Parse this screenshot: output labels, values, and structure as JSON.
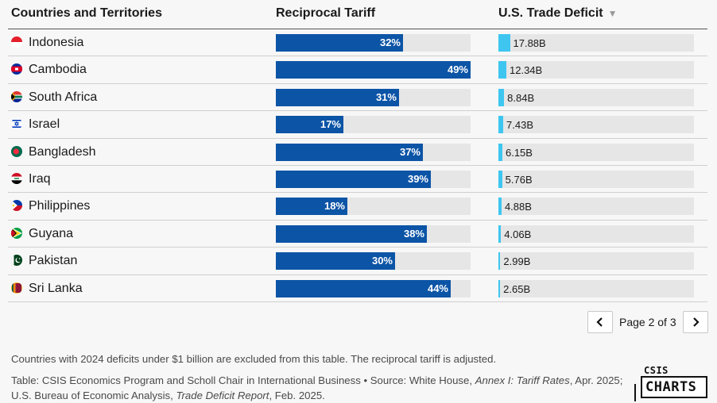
{
  "header": {
    "country_col": "Countries and Territories",
    "tariff_col": "Reciprocal Tariff",
    "deficit_col": "U.S. Trade Deficit"
  },
  "chart_data": {
    "type": "table",
    "columns": [
      "Countries and Territories",
      "Reciprocal Tariff",
      "U.S. Trade Deficit"
    ],
    "tariff_max": 49,
    "deficit_max": 17.88,
    "rows": [
      {
        "country": "Indonesia",
        "tariff": 32,
        "tariff_label": "32%",
        "deficit": 17.88,
        "deficit_label": "17.88B",
        "flag": "indonesia-flag"
      },
      {
        "country": "Cambodia",
        "tariff": 49,
        "tariff_label": "49%",
        "deficit": 12.34,
        "deficit_label": "12.34B",
        "flag": "cambodia-flag"
      },
      {
        "country": "South Africa",
        "tariff": 31,
        "tariff_label": "31%",
        "deficit": 8.84,
        "deficit_label": "8.84B",
        "flag": "south-africa-flag"
      },
      {
        "country": "Israel",
        "tariff": 17,
        "tariff_label": "17%",
        "deficit": 7.43,
        "deficit_label": "7.43B",
        "flag": "israel-flag"
      },
      {
        "country": "Bangladesh",
        "tariff": 37,
        "tariff_label": "37%",
        "deficit": 6.15,
        "deficit_label": "6.15B",
        "flag": "bangladesh-flag"
      },
      {
        "country": "Iraq",
        "tariff": 39,
        "tariff_label": "39%",
        "deficit": 5.76,
        "deficit_label": "5.76B",
        "flag": "iraq-flag"
      },
      {
        "country": "Philippines",
        "tariff": 18,
        "tariff_label": "18%",
        "deficit": 4.88,
        "deficit_label": "4.88B",
        "flag": "philippines-flag"
      },
      {
        "country": "Guyana",
        "tariff": 38,
        "tariff_label": "38%",
        "deficit": 4.06,
        "deficit_label": "4.06B",
        "flag": "guyana-flag"
      },
      {
        "country": "Pakistan",
        "tariff": 30,
        "tariff_label": "30%",
        "deficit": 2.99,
        "deficit_label": "2.99B",
        "flag": "pakistan-flag"
      },
      {
        "country": "Sri Lanka",
        "tariff": 44,
        "tariff_label": "44%",
        "deficit": 2.65,
        "deficit_label": "2.65B",
        "flag": "sri-lanka-flag"
      }
    ]
  },
  "pagination": {
    "label": "Page 2 of 3",
    "current": 2,
    "total": 3
  },
  "footer": {
    "note": "Countries with 2024 deficits under $1 billion are excluded from this table. The reciprocal tariff is adjusted.",
    "source_prefix": "Table: CSIS Economics Program and Scholl Chair in International Business • Source: White House, ",
    "source_doc1": "Annex I: Tariff Rates",
    "source_mid": ", Apr. 2025; U.S. Bureau of Economic Analysis, ",
    "source_doc2": "Trade Deficit Report",
    "source_end": ", Feb. 2025."
  },
  "logo": {
    "top": "CSIS",
    "bottom": "CHARTS"
  },
  "colors": {
    "tariff_bar": "#0c54a6",
    "deficit_bar": "#3ec6f0",
    "track": "#e6e6e6"
  }
}
